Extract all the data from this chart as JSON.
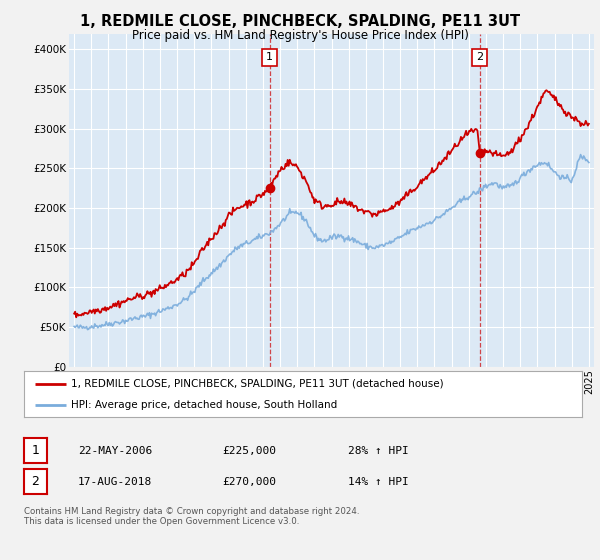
{
  "title": "1, REDMILE CLOSE, PINCHBECK, SPALDING, PE11 3UT",
  "subtitle": "Price paid vs. HM Land Registry's House Price Index (HPI)",
  "yticks": [
    0,
    50000,
    100000,
    150000,
    200000,
    250000,
    300000,
    350000,
    400000
  ],
  "ytick_labels": [
    "£0",
    "£50K",
    "£100K",
    "£150K",
    "£200K",
    "£250K",
    "£300K",
    "£350K",
    "£400K"
  ],
  "ylim": [
    0,
    420000
  ],
  "xlim_start": 1994.7,
  "xlim_end": 2025.3,
  "xticks": [
    1995,
    1996,
    1997,
    1998,
    1999,
    2000,
    2001,
    2002,
    2003,
    2004,
    2005,
    2006,
    2007,
    2008,
    2009,
    2010,
    2011,
    2012,
    2013,
    2014,
    2015,
    2016,
    2017,
    2018,
    2019,
    2020,
    2021,
    2022,
    2023,
    2024,
    2025
  ],
  "purchase1_x": 2006.39,
  "purchase1_y": 225000,
  "purchase2_x": 2018.63,
  "purchase2_y": 270000,
  "legend_line1": "1, REDMILE CLOSE, PINCHBECK, SPALDING, PE11 3UT (detached house)",
  "legend_line2": "HPI: Average price, detached house, South Holland",
  "table_row1": [
    "1",
    "22-MAY-2006",
    "£225,000",
    "28% ↑ HPI"
  ],
  "table_row2": [
    "2",
    "17-AUG-2018",
    "£270,000",
    "14% ↑ HPI"
  ],
  "footnote": "Contains HM Land Registry data © Crown copyright and database right 2024.\nThis data is licensed under the Open Government Licence v3.0.",
  "house_color": "#cc0000",
  "hpi_color": "#7aacdc",
  "plot_bg_color": "#dce9f5",
  "fig_bg_color": "#f2f2f2",
  "legend_bg_color": "#ffffff",
  "grid_color": "#ffffff",
  "hpi_points": [
    [
      1995.0,
      50000
    ],
    [
      1995.5,
      49500
    ],
    [
      1996.0,
      51000
    ],
    [
      1996.5,
      52000
    ],
    [
      1997.0,
      54000
    ],
    [
      1997.5,
      56000
    ],
    [
      1998.0,
      58000
    ],
    [
      1998.5,
      61000
    ],
    [
      1999.0,
      63000
    ],
    [
      1999.5,
      66000
    ],
    [
      2000.0,
      70000
    ],
    [
      2000.5,
      74000
    ],
    [
      2001.0,
      79000
    ],
    [
      2001.5,
      85000
    ],
    [
      2002.0,
      95000
    ],
    [
      2002.5,
      108000
    ],
    [
      2003.0,
      118000
    ],
    [
      2003.5,
      128000
    ],
    [
      2004.0,
      140000
    ],
    [
      2004.5,
      150000
    ],
    [
      2005.0,
      155000
    ],
    [
      2005.5,
      160000
    ],
    [
      2006.0,
      165000
    ],
    [
      2006.5,
      170000
    ],
    [
      2007.0,
      180000
    ],
    [
      2007.5,
      192000
    ],
    [
      2008.0,
      195000
    ],
    [
      2008.5,
      185000
    ],
    [
      2009.0,
      165000
    ],
    [
      2009.5,
      158000
    ],
    [
      2010.0,
      163000
    ],
    [
      2010.5,
      165000
    ],
    [
      2011.0,
      162000
    ],
    [
      2011.5,
      158000
    ],
    [
      2012.0,
      152000
    ],
    [
      2012.5,
      150000
    ],
    [
      2013.0,
      153000
    ],
    [
      2013.5,
      157000
    ],
    [
      2014.0,
      163000
    ],
    [
      2014.5,
      170000
    ],
    [
      2015.0,
      175000
    ],
    [
      2015.5,
      180000
    ],
    [
      2016.0,
      185000
    ],
    [
      2016.5,
      192000
    ],
    [
      2017.0,
      200000
    ],
    [
      2017.5,
      208000
    ],
    [
      2018.0,
      215000
    ],
    [
      2018.5,
      220000
    ],
    [
      2019.0,
      228000
    ],
    [
      2019.5,
      232000
    ],
    [
      2020.0,
      225000
    ],
    [
      2020.5,
      228000
    ],
    [
      2021.0,
      238000
    ],
    [
      2021.5,
      248000
    ],
    [
      2022.0,
      255000
    ],
    [
      2022.5,
      258000
    ],
    [
      2023.0,
      245000
    ],
    [
      2023.5,
      238000
    ],
    [
      2024.0,
      235000
    ],
    [
      2024.5,
      265000
    ],
    [
      2025.0,
      260000
    ]
  ],
  "house_points": [
    [
      1995.0,
      65000
    ],
    [
      1995.5,
      67000
    ],
    [
      1996.0,
      70000
    ],
    [
      1996.5,
      72000
    ],
    [
      1997.0,
      75000
    ],
    [
      1997.5,
      79000
    ],
    [
      1998.0,
      83000
    ],
    [
      1998.5,
      87000
    ],
    [
      1999.0,
      90000
    ],
    [
      1999.5,
      93000
    ],
    [
      2000.0,
      98000
    ],
    [
      2000.5,
      104000
    ],
    [
      2001.0,
      110000
    ],
    [
      2001.5,
      118000
    ],
    [
      2002.0,
      130000
    ],
    [
      2002.5,
      148000
    ],
    [
      2003.0,
      162000
    ],
    [
      2003.5,
      175000
    ],
    [
      2004.0,
      190000
    ],
    [
      2004.5,
      200000
    ],
    [
      2005.0,
      205000
    ],
    [
      2005.5,
      210000
    ],
    [
      2006.0,
      218000
    ],
    [
      2006.39,
      225000
    ],
    [
      2006.5,
      230000
    ],
    [
      2007.0,
      248000
    ],
    [
      2007.5,
      258000
    ],
    [
      2008.0,
      252000
    ],
    [
      2008.5,
      235000
    ],
    [
      2009.0,
      210000
    ],
    [
      2009.5,
      202000
    ],
    [
      2010.0,
      205000
    ],
    [
      2010.5,
      208000
    ],
    [
      2011.0,
      205000
    ],
    [
      2011.5,
      200000
    ],
    [
      2012.0,
      195000
    ],
    [
      2012.5,
      192000
    ],
    [
      2013.0,
      196000
    ],
    [
      2013.5,
      200000
    ],
    [
      2014.0,
      208000
    ],
    [
      2014.5,
      218000
    ],
    [
      2015.0,
      228000
    ],
    [
      2015.5,
      238000
    ],
    [
      2016.0,
      248000
    ],
    [
      2016.5,
      260000
    ],
    [
      2017.0,
      272000
    ],
    [
      2017.5,
      285000
    ],
    [
      2018.0,
      295000
    ],
    [
      2018.5,
      298000
    ],
    [
      2018.63,
      270000
    ],
    [
      2019.0,
      272000
    ],
    [
      2019.5,
      268000
    ],
    [
      2020.0,
      265000
    ],
    [
      2020.5,
      272000
    ],
    [
      2021.0,
      288000
    ],
    [
      2021.5,
      305000
    ],
    [
      2022.0,
      328000
    ],
    [
      2022.5,
      348000
    ],
    [
      2023.0,
      338000
    ],
    [
      2023.5,
      325000
    ],
    [
      2024.0,
      315000
    ],
    [
      2024.5,
      308000
    ],
    [
      2025.0,
      305000
    ]
  ]
}
